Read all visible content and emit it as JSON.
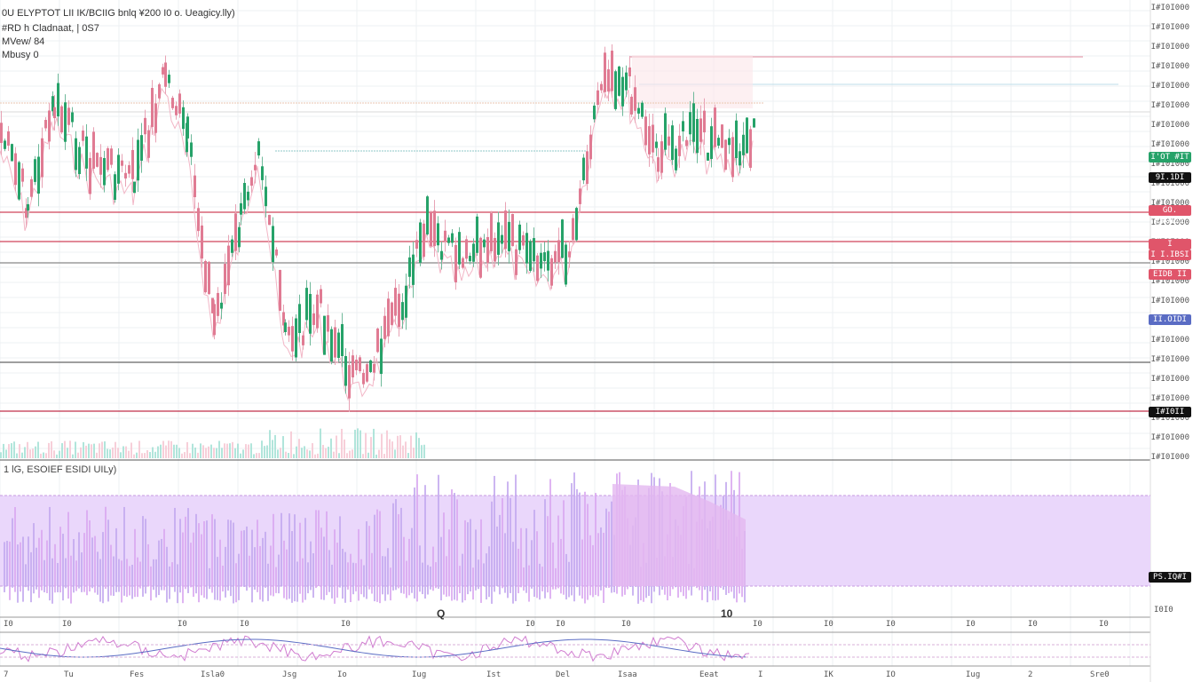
{
  "legend": {
    "line1": "0U ELYPTOT LII IK/BCIIG bnlq ¥200 I0 o. Ueagicy.lly)",
    "line2": "#RD h Cladnaat, | 0S7",
    "line3": "MVew/ 84",
    "line4": "Mbusy 0"
  },
  "indicator": {
    "title": "1 lG, ESOIEF ESIDI UILy)",
    "marker1": "Q",
    "marker2": "10"
  },
  "price_tags": [
    {
      "label": "I'OT #IT",
      "color": "#26a269"
    },
    {
      "label": "9I.1DI",
      "color": "#111111"
    },
    {
      "label": "GO. I#GIII",
      "color": "#e0556a"
    },
    {
      "label": "I I.I#GIII",
      "color": "#e0556a"
    },
    {
      "label": "I I.IBSI",
      "color": "#e0556a"
    },
    {
      "label": "EIDB II",
      "color": "#e0556a"
    },
    {
      "label": "II.OIDI",
      "color": "#5a6cc4"
    },
    {
      "label": "I#I0II",
      "color": "#111111"
    },
    {
      "label": "PS.IQ#I",
      "color": "#111111"
    }
  ],
  "axis_labels": [
    "I#I0I000",
    "I#I0I000",
    "I#I0I000",
    "I#I0I000",
    "I#I0I000",
    "I#I0I000",
    "I#I0I000",
    "I#I0I000",
    "I#I0I000",
    "I#I0I000",
    "I#I0I000",
    "I#I0I000",
    "I#I0I000",
    "I#I0I000",
    "I#I0I000",
    "I#I0I000",
    "I#I0I000",
    "I#I0I000",
    "I#I0I000",
    "I#I0I000",
    "I#I0I000",
    "I#I0I000",
    "I#I0I000",
    "I#I0I000"
  ],
  "corner": "I0I0",
  "time_labels": [
    "7",
    "Tu",
    "Fes",
    "Isla0",
    "Jsg",
    "Io",
    "Iug",
    "Ist",
    "Del",
    "Isaa",
    "Eeat",
    "I",
    "IK",
    "IO",
    "Iug",
    "2",
    "Sre0"
  ],
  "top_time_labels": [
    "I0",
    "I0",
    "I0",
    "I0",
    "I0",
    "I0",
    "I0",
    "I0",
    "I0",
    "I0",
    "I0",
    "I0",
    "I0",
    "I0"
  ],
  "colors": {
    "up": "#26a269",
    "down": "#e07b93",
    "violet": "#d9a8f0",
    "line_red": "#d0455a"
  }
}
